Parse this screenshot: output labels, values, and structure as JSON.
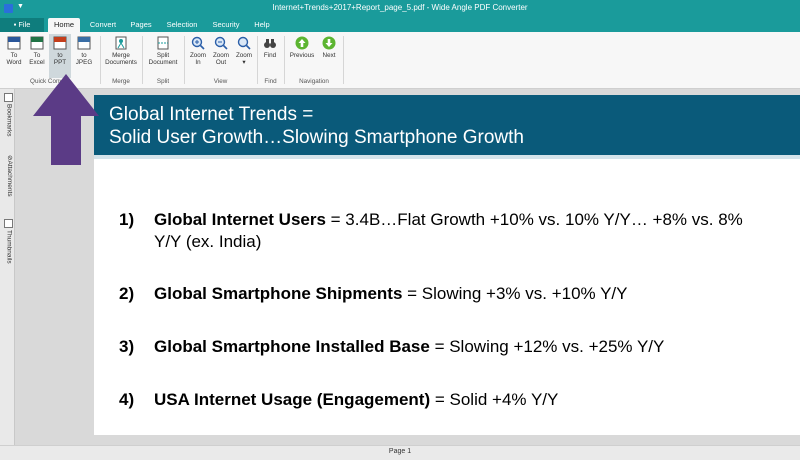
{
  "window": {
    "title": "Internet+Trends+2017+Report_page_5.pdf - Wide Angle PDF Converter"
  },
  "tabs": {
    "file": "File",
    "home": "Home",
    "convert": "Convert",
    "pages": "Pages",
    "selection": "Selection",
    "security": "Security",
    "help": "Help"
  },
  "ribbon": {
    "to_word": [
      "To",
      "Word"
    ],
    "to_excel": [
      "To",
      "Excel"
    ],
    "to_ppt": [
      "to",
      "PPT"
    ],
    "to_jpeg": [
      "to",
      "JPEG"
    ],
    "merge_documents": [
      "Merge",
      "Documents"
    ],
    "split_document": [
      "Split",
      "Document"
    ],
    "zoom_in": [
      "Zoom",
      "In"
    ],
    "zoom_out": [
      "Zoom",
      "Out"
    ],
    "zoom": "Zoom",
    "find": "Find",
    "previous": "Previous",
    "next": "Next",
    "groups": {
      "quick_convert": "Quick Convert",
      "merge": "Merge",
      "split": "Split",
      "view": "View",
      "find": "Find",
      "navigation": "Navigation"
    }
  },
  "side_panel": {
    "bookmarks": "Bookmarks",
    "attachments": "Attachments",
    "thumbnails": "Thumbnails"
  },
  "slide": {
    "title_line1": "Global Internet Trends =",
    "title_line2": "Solid User Growth…Slowing Smartphone Growth",
    "items": [
      {
        "num": "1)",
        "bold": "Global Internet Users",
        "rest": " = 3.4B…Flat Growth +10% vs. 10% Y/Y… +8% vs. 8% Y/Y (ex. India)"
      },
      {
        "num": "2)",
        "bold": "Global Smartphone Shipments",
        "rest": " = Slowing +3% vs. +10% Y/Y"
      },
      {
        "num": "3)",
        "bold": "Global Smartphone Installed Base",
        "rest": " = Slowing +12% vs. +25% Y/Y"
      },
      {
        "num": "4)",
        "bold": "USA Internet Usage (Engagement)",
        "rest": " = Solid +4% Y/Y"
      }
    ]
  },
  "status": {
    "page": "Page 1"
  },
  "colors": {
    "titlebar": "#1a9b9b",
    "slide_header": "#0a5a7a",
    "arrow": "#5b3b86"
  }
}
